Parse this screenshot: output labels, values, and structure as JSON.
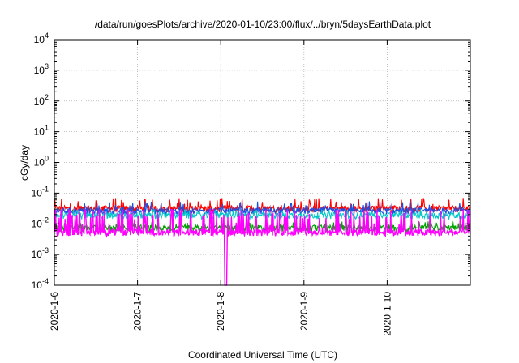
{
  "chart_data": {
    "type": "line",
    "title": "/data/run/goesPlots/archive/2020-01-10/23:00/flux/../bryn/5daysEarthData.plot",
    "xlabel": "Coordinated Universal Time (UTC)",
    "ylabel": "cGy/day",
    "y_scale": "log",
    "ylim": [
      0.0001,
      10000
    ],
    "y_ticks": [
      {
        "value": 0.0001,
        "base": "10",
        "exp": "-4"
      },
      {
        "value": 0.001,
        "base": "10",
        "exp": "-3"
      },
      {
        "value": 0.01,
        "base": "10",
        "exp": "-2"
      },
      {
        "value": 0.1,
        "base": "10",
        "exp": "-1"
      },
      {
        "value": 1,
        "base": "10",
        "exp": "0"
      },
      {
        "value": 10,
        "base": "10",
        "exp": "1"
      },
      {
        "value": 100,
        "base": "10",
        "exp": "2"
      },
      {
        "value": 1000,
        "base": "10",
        "exp": "3"
      },
      {
        "value": 10000,
        "base": "10",
        "exp": "4"
      }
    ],
    "xlim": [
      "2020-01-06",
      "2020-01-11"
    ],
    "x_ticks": [
      "2020-1-6",
      "2020-1-7",
      "2020-1-8",
      "2020-1-9",
      "2020-1-10"
    ],
    "grid": true,
    "series": [
      {
        "color": "#ff0000",
        "base_value": 0.03,
        "spike_max": 0.07
      },
      {
        "color": "#1f4fe0",
        "base_value": 0.025,
        "spike_max": 0.055
      },
      {
        "color": "#00c8c8",
        "base_value": 0.018,
        "spike_max": 0.03
      },
      {
        "color": "#00a000",
        "base_value": 0.007,
        "spike_max": 0.012
      },
      {
        "color": "#ff00ff",
        "base_value": 0.005,
        "spike_max": 0.03,
        "dip_date": "2020-01-08",
        "dip_min": 0.0001
      }
    ]
  }
}
